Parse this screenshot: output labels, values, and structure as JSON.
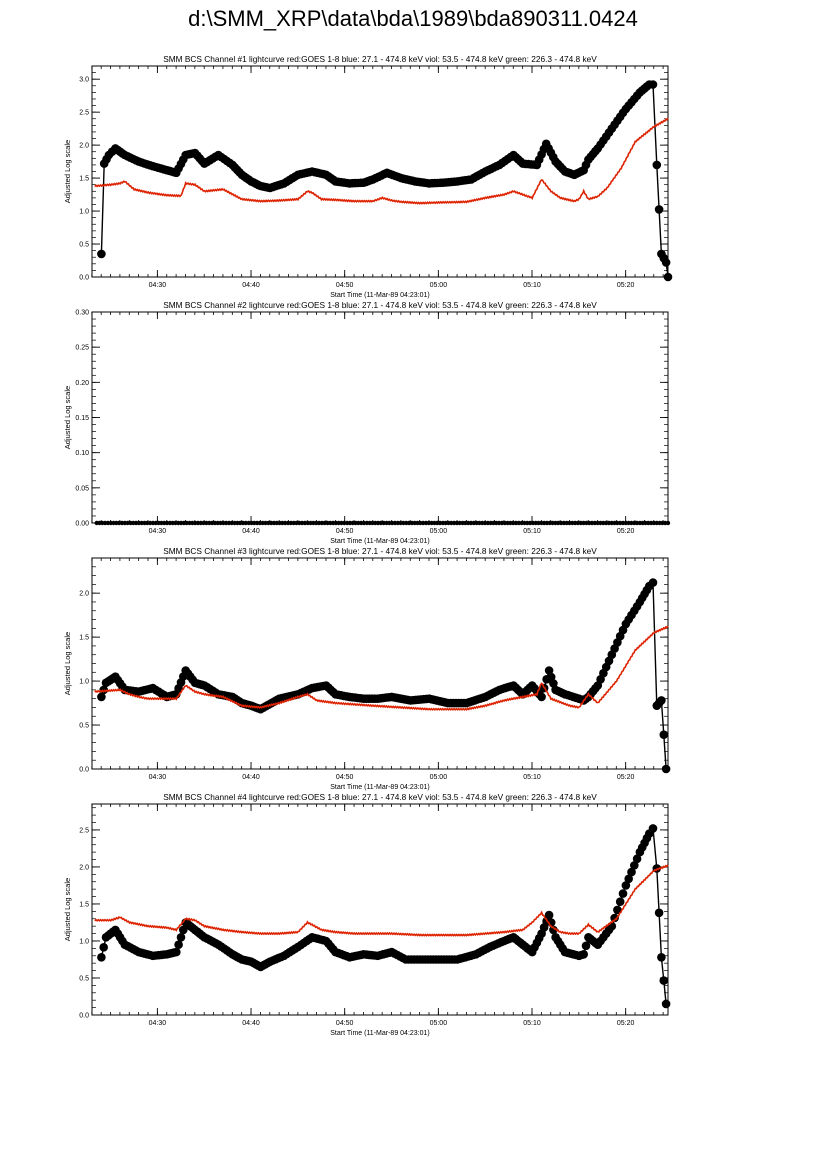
{
  "page": {
    "title": "d:\\SMM_XRP\\data\\bda\\1989\\bda890311.0424"
  },
  "time_axis": {
    "ticks": [
      "04:30",
      "04:40",
      "04:50",
      "05:00",
      "05:10",
      "05:20"
    ],
    "xlabel": "Start Time (11-Mar-89 04:23:01)"
  },
  "colors": {
    "data": "#000000",
    "goes": "#dd2200"
  },
  "chart_data": [
    {
      "type": "scatter",
      "title": "SMM BCS Channel #1 lightcurve  red:GOES 1-8  blue: 27.1 - 474.8 keV  viol: 53.5 - 474.8 keV  green: 226.3 - 474.8 keV",
      "ylabel": "Adjusted Log scale",
      "ylim": [
        0,
        3.2
      ],
      "yticks": [
        "0.0",
        "0.5",
        "1.0",
        "1.5",
        "2.0",
        "2.5",
        "3.0"
      ],
      "xlim_minutes": [
        0,
        61.5
      ],
      "series": [
        {
          "role": "counts",
          "style": "black-dots",
          "x": [
            1,
            1.3,
            1.8,
            2.5,
            3.5,
            5,
            6.5,
            8,
            9,
            10,
            11,
            12,
            13.5,
            15,
            16,
            17,
            18,
            19,
            20.5,
            22,
            23.5,
            25,
            26,
            27.5,
            29,
            30,
            31.5,
            33,
            34.5,
            36,
            37.5,
            39,
            40.5,
            42,
            43.5,
            45,
            46,
            47.5,
            48.5,
            49.5,
            50.5,
            51.5,
            52.5,
            53,
            54,
            55.5,
            57,
            58.5,
            59.5,
            59.9,
            60.3,
            60.8,
            61.3,
            61.5
          ],
          "y": [
            0.35,
            1.72,
            1.85,
            1.95,
            1.85,
            1.75,
            1.68,
            1.62,
            1.58,
            1.85,
            1.88,
            1.72,
            1.85,
            1.7,
            1.55,
            1.45,
            1.38,
            1.35,
            1.42,
            1.55,
            1.6,
            1.55,
            1.45,
            1.42,
            1.43,
            1.48,
            1.58,
            1.5,
            1.45,
            1.42,
            1.43,
            1.45,
            1.48,
            1.6,
            1.7,
            1.85,
            1.72,
            1.7,
            2.02,
            1.75,
            1.6,
            1.55,
            1.62,
            1.78,
            1.95,
            2.25,
            2.55,
            2.8,
            2.92,
            2.92,
            1.7,
            0.35,
            0.22,
            0.0
          ]
        },
        {
          "role": "goes",
          "style": "red-line",
          "x": [
            0.3,
            2,
            3,
            3.5,
            4.5,
            6,
            8,
            9.5,
            10,
            11,
            12,
            14,
            16,
            18,
            20,
            22,
            23,
            23.5,
            24.5,
            26,
            28,
            30,
            31,
            32,
            33,
            35,
            37,
            40,
            42,
            44,
            45,
            46,
            47,
            48,
            49,
            50,
            51.5,
            52,
            52.5,
            53,
            54,
            55,
            56.5,
            58,
            60,
            61.5
          ],
          "y": [
            1.38,
            1.4,
            1.42,
            1.45,
            1.33,
            1.28,
            1.24,
            1.23,
            1.42,
            1.4,
            1.3,
            1.33,
            1.18,
            1.15,
            1.16,
            1.18,
            1.3,
            1.28,
            1.18,
            1.17,
            1.15,
            1.15,
            1.2,
            1.16,
            1.14,
            1.12,
            1.13,
            1.14,
            1.2,
            1.25,
            1.3,
            1.25,
            1.2,
            1.48,
            1.3,
            1.2,
            1.15,
            1.18,
            1.3,
            1.18,
            1.22,
            1.35,
            1.65,
            2.05,
            2.28,
            2.4
          ]
        }
      ]
    },
    {
      "type": "scatter",
      "title": "SMM BCS Channel #2 lightcurve  red:GOES 1-8  blue: 27.1 - 474.8 keV  viol: 53.5 - 474.8 keV  green: 226.3 - 474.8 keV",
      "ylabel": "Adjusted Log scale",
      "ylim": [
        0,
        0.3
      ],
      "yticks": [
        "0.00",
        "0.05",
        "0.10",
        "0.15",
        "0.20",
        "0.25",
        "0.30"
      ],
      "xlim_minutes": [
        0,
        61.5
      ],
      "series": [
        {
          "role": "counts",
          "style": "black-dots-flat",
          "x": [
            0.5,
            61.5
          ],
          "y": [
            0.0,
            0.0
          ]
        }
      ]
    },
    {
      "type": "scatter",
      "title": "SMM BCS Channel #3 lightcurve  red:GOES 1-8  blue: 27.1 - 474.8 keV  viol: 53.5 - 474.8 keV  green: 226.3 - 474.8 keV",
      "ylabel": "Adjusted Log scale",
      "ylim": [
        0,
        2.4
      ],
      "yticks": [
        "0.0",
        "0.5",
        "1.0",
        "1.5",
        "2.0"
      ],
      "xlim_minutes": [
        0,
        61.5
      ],
      "series": [
        {
          "role": "counts",
          "style": "black-dots",
          "x": [
            1,
            1.5,
            2.5,
            3.5,
            5,
            6.5,
            8,
            9,
            10,
            11,
            12,
            13.5,
            15,
            16,
            17,
            18,
            20,
            22,
            23.5,
            25,
            26,
            27.5,
            29,
            30.5,
            32,
            34,
            36,
            38,
            40,
            42,
            43.5,
            45,
            46,
            47,
            48,
            48.8,
            49.5,
            50.5,
            52,
            52.5,
            53,
            54,
            55.5,
            57,
            58.5,
            59.5,
            59.9,
            60.3,
            60.8,
            61.3
          ],
          "y": [
            0.82,
            0.98,
            1.05,
            0.9,
            0.88,
            0.92,
            0.82,
            0.85,
            1.12,
            0.98,
            0.95,
            0.85,
            0.82,
            0.75,
            0.72,
            0.68,
            0.8,
            0.85,
            0.92,
            0.95,
            0.85,
            0.82,
            0.8,
            0.8,
            0.82,
            0.78,
            0.8,
            0.75,
            0.75,
            0.82,
            0.9,
            0.95,
            0.85,
            0.95,
            0.82,
            1.12,
            0.9,
            0.85,
            0.8,
            0.78,
            0.82,
            0.95,
            1.3,
            1.65,
            1.9,
            2.08,
            2.12,
            0.72,
            0.78,
            0.0
          ]
        },
        {
          "role": "goes",
          "style": "red-line",
          "x": [
            0.3,
            3,
            4,
            5,
            6,
            9,
            10,
            11,
            12,
            14,
            16,
            18,
            20,
            22,
            23,
            24,
            26,
            30,
            33,
            36,
            40,
            42,
            44,
            46,
            47.5,
            48,
            49,
            51,
            52,
            53,
            54,
            56,
            58,
            60,
            61.5
          ],
          "y": [
            0.88,
            0.9,
            0.85,
            0.82,
            0.8,
            0.8,
            0.95,
            0.88,
            0.85,
            0.82,
            0.72,
            0.7,
            0.75,
            0.82,
            0.85,
            0.78,
            0.75,
            0.72,
            0.7,
            0.68,
            0.68,
            0.72,
            0.78,
            0.82,
            0.85,
            0.98,
            0.8,
            0.72,
            0.7,
            0.85,
            0.75,
            1.0,
            1.35,
            1.55,
            1.62
          ]
        }
      ]
    },
    {
      "type": "scatter",
      "title": "SMM BCS Channel #4 lightcurve  red:GOES 1-8  blue: 27.1 - 474.8 keV  viol: 53.5 - 474.8 keV  green: 226.3 - 474.8 keV",
      "ylabel": "Adjusted Log scale",
      "ylim": [
        0,
        2.85
      ],
      "yticks": [
        "0.0",
        "0.5",
        "1.0",
        "1.5",
        "2.0",
        "2.5"
      ],
      "xlim_minutes": [
        0,
        61.5
      ],
      "series": [
        {
          "role": "counts",
          "style": "black-dots",
          "x": [
            1,
            1.5,
            2.5,
            3.5,
            5,
            6.5,
            8,
            9,
            10,
            11,
            12,
            13.5,
            15,
            16,
            17,
            18,
            19,
            20.5,
            22,
            23.5,
            25,
            26,
            27.5,
            29,
            30.5,
            32,
            33.5,
            35,
            37,
            39,
            41,
            42.5,
            44,
            45,
            46,
            47,
            48,
            48.8,
            49.5,
            50.5,
            52,
            52.5,
            53,
            54,
            55.5,
            57,
            58.5,
            59.5,
            59.9,
            60.3,
            60.8,
            61.3
          ],
          "y": [
            0.78,
            1.05,
            1.15,
            0.95,
            0.85,
            0.8,
            0.82,
            0.85,
            1.25,
            1.15,
            1.05,
            0.95,
            0.82,
            0.75,
            0.72,
            0.65,
            0.72,
            0.8,
            0.92,
            1.05,
            1.0,
            0.85,
            0.78,
            0.82,
            0.8,
            0.85,
            0.75,
            0.75,
            0.75,
            0.75,
            0.82,
            0.92,
            1.0,
            1.05,
            0.95,
            0.85,
            1.1,
            1.35,
            1.05,
            0.85,
            0.8,
            0.82,
            1.05,
            0.95,
            1.2,
            1.75,
            2.2,
            2.45,
            2.52,
            1.98,
            0.78,
            0.15
          ]
        },
        {
          "role": "goes",
          "style": "red-line",
          "x": [
            0.3,
            2,
            3,
            4,
            6,
            8,
            9,
            10,
            11,
            12,
            14,
            16,
            18,
            20,
            22,
            23,
            23.5,
            24.5,
            26,
            28,
            30,
            32,
            35,
            38,
            40,
            42,
            44,
            46,
            47,
            48,
            49,
            50,
            51,
            52,
            53,
            54,
            56,
            58,
            60,
            61.5
          ],
          "y": [
            1.28,
            1.28,
            1.32,
            1.25,
            1.2,
            1.18,
            1.15,
            1.3,
            1.28,
            1.2,
            1.15,
            1.12,
            1.1,
            1.1,
            1.12,
            1.25,
            1.22,
            1.15,
            1.12,
            1.1,
            1.1,
            1.1,
            1.08,
            1.08,
            1.08,
            1.1,
            1.12,
            1.15,
            1.25,
            1.38,
            1.2,
            1.12,
            1.1,
            1.1,
            1.22,
            1.12,
            1.3,
            1.7,
            1.95,
            2.02
          ]
        }
      ]
    }
  ]
}
